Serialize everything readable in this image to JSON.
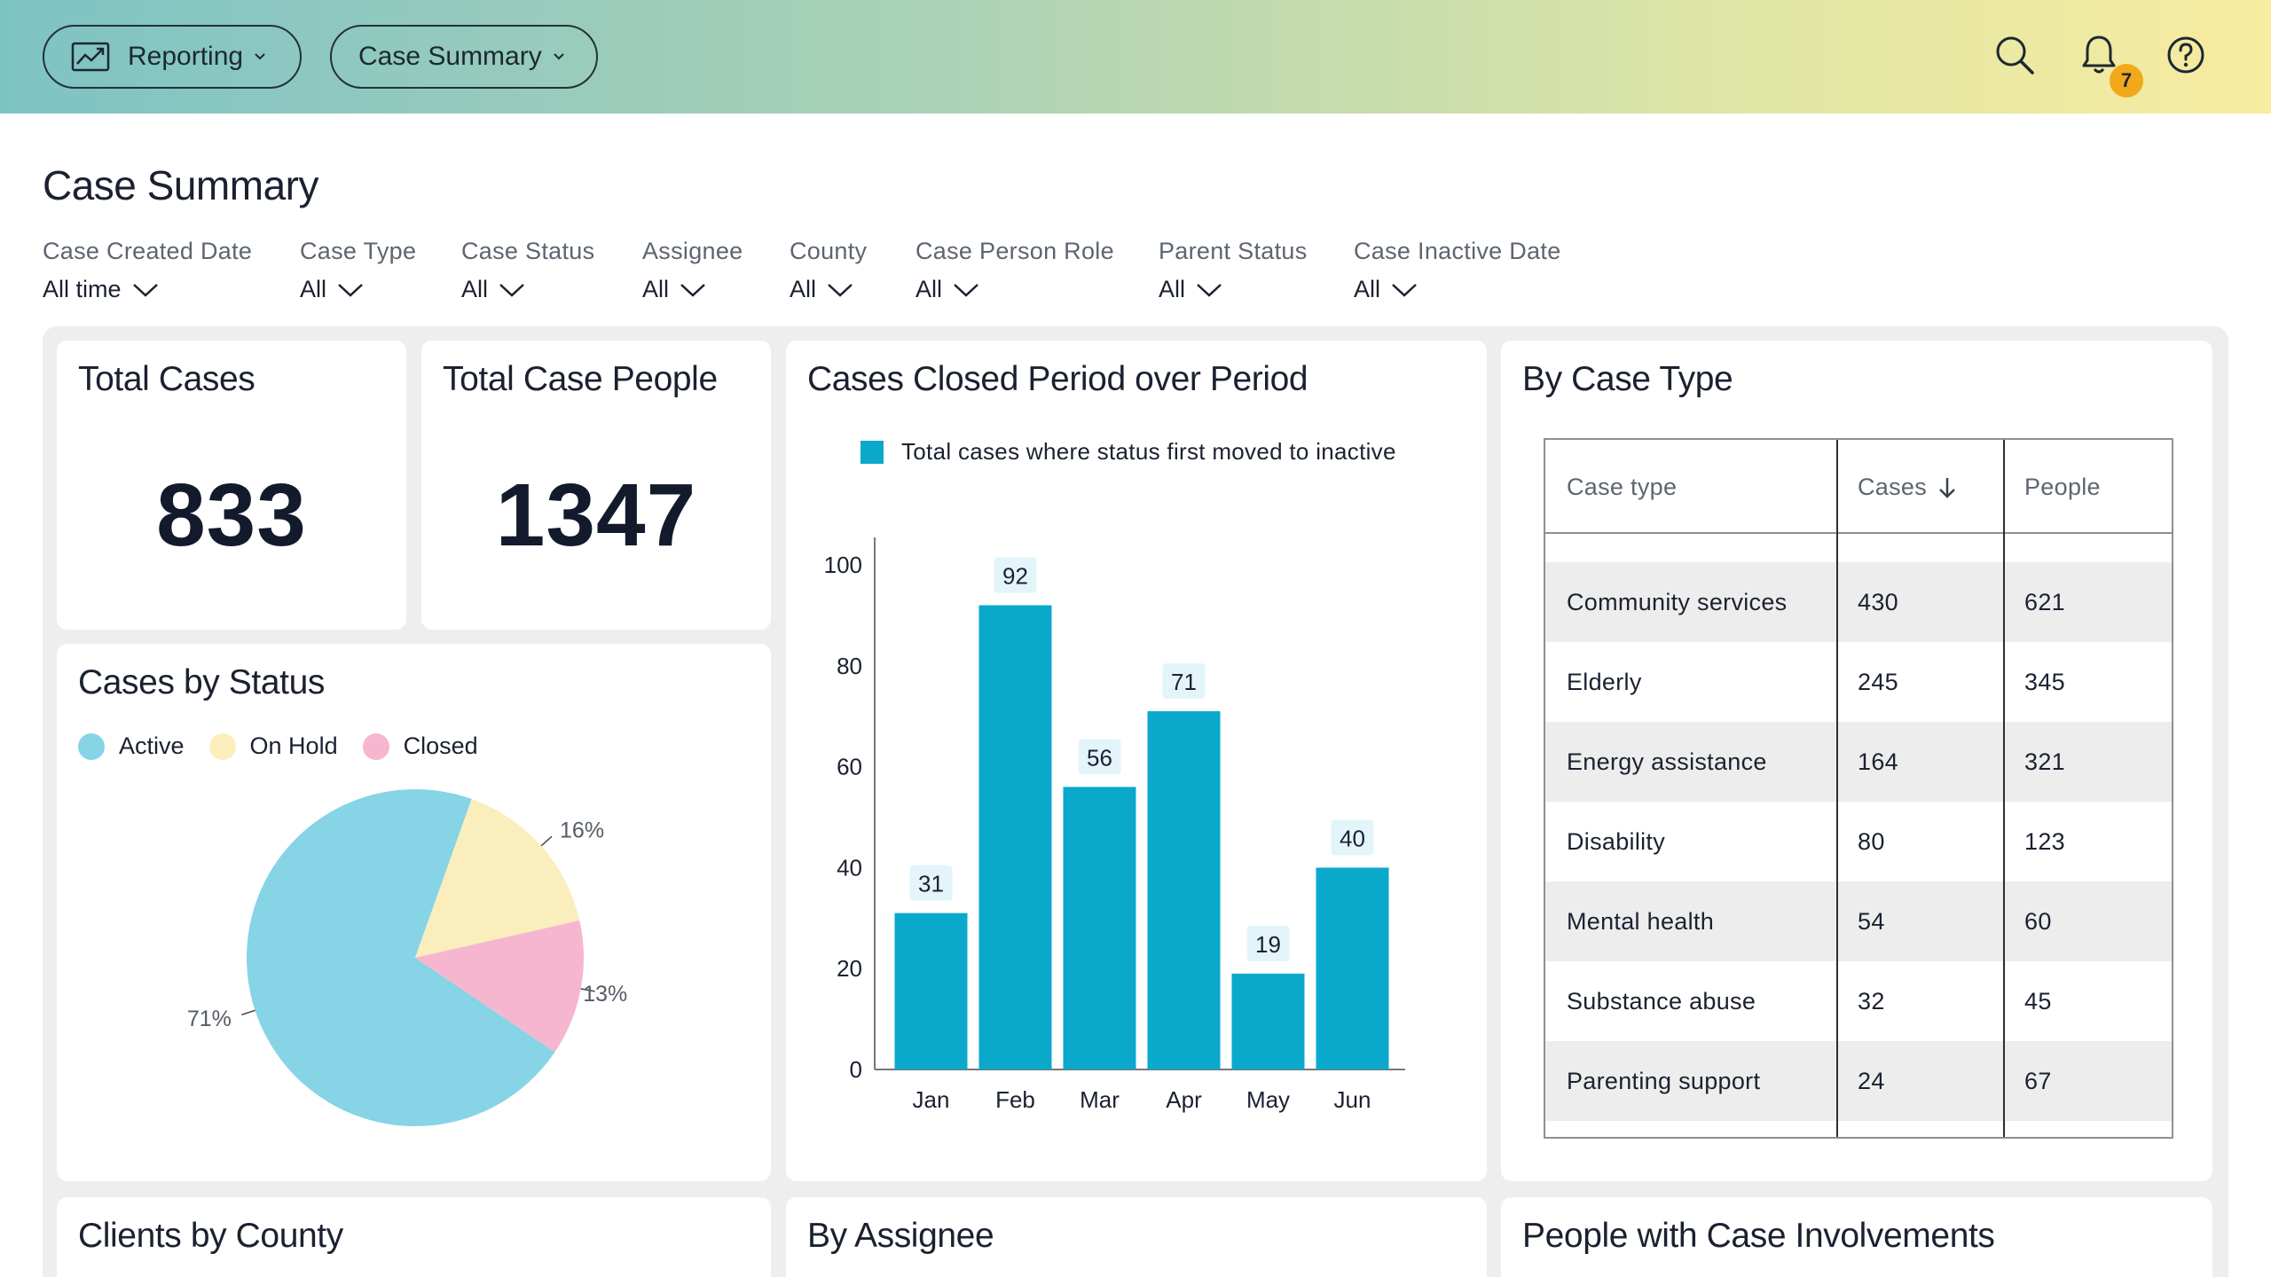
{
  "nav": {
    "reporting_label": "Reporting",
    "case_summary_label": "Case Summary",
    "notifications_count": "7"
  },
  "page": {
    "title": "Case Summary"
  },
  "filters": [
    {
      "label": "Case Created Date",
      "value": "All time"
    },
    {
      "label": "Case Type",
      "value": "All"
    },
    {
      "label": "Case Status",
      "value": "All"
    },
    {
      "label": "Assignee",
      "value": "All"
    },
    {
      "label": "County",
      "value": "All"
    },
    {
      "label": "Case Person Role",
      "value": "All"
    },
    {
      "label": "Parent Status",
      "value": "All"
    },
    {
      "label": "Case Inactive Date",
      "value": "All"
    }
  ],
  "kpis": {
    "total_cases": {
      "title": "Total Cases",
      "value": "833"
    },
    "total_people": {
      "title": "Total Case People",
      "value": "1347"
    }
  },
  "status_card": {
    "title": "Cases by Status",
    "legend": [
      {
        "label": "Active",
        "color": "#86d4e6"
      },
      {
        "label": "On Hold",
        "color": "#fbeebd"
      },
      {
        "label": "Closed",
        "color": "#f6b6d0"
      }
    ]
  },
  "bar_card": {
    "title": "Cases Closed Period over Period",
    "legend_label": "Total cases where status first moved to inactive",
    "color": "#0aa9cc"
  },
  "type_card": {
    "title": "By Case Type",
    "headers": {
      "type": "Case type",
      "cases": "Cases",
      "people": "People"
    },
    "rows": [
      {
        "type": "Community services",
        "cases": "430",
        "people": "621"
      },
      {
        "type": "Elderly",
        "cases": "245",
        "people": "345"
      },
      {
        "type": "Energy assistance",
        "cases": "164",
        "people": "321"
      },
      {
        "type": "Disability",
        "cases": "80",
        "people": "123"
      },
      {
        "type": "Mental health",
        "cases": "54",
        "people": "60"
      },
      {
        "type": "Substance abuse",
        "cases": "32",
        "people": "45"
      },
      {
        "type": "Parenting support",
        "cases": "24",
        "people": "67"
      }
    ]
  },
  "bottom_cards": {
    "county_title": "Clients by County",
    "assignee_title": "By Assignee",
    "involvement_title": "People with Case Involvements"
  },
  "chart_data": [
    {
      "type": "pie",
      "title": "Cases by Status",
      "categories": [
        "Active",
        "On Hold",
        "Closed"
      ],
      "values": [
        71,
        16,
        13
      ],
      "labels": [
        "71%",
        "16%",
        "13%"
      ],
      "colors": [
        "#86d4e6",
        "#fbeebd",
        "#f6b6d0"
      ],
      "legend": "top-left"
    },
    {
      "type": "bar",
      "title": "Cases Closed Period over Period",
      "categories": [
        "Jan",
        "Feb",
        "Mar",
        "Apr",
        "May",
        "Jun"
      ],
      "series": [
        {
          "name": "Total cases where status first moved to inactive",
          "values": [
            31,
            92,
            56,
            71,
            19,
            40
          ]
        }
      ],
      "ylim": [
        0,
        100
      ],
      "yticks": [
        0,
        20,
        40,
        60,
        80,
        100
      ],
      "grid": false,
      "legend": "top-left"
    }
  ]
}
